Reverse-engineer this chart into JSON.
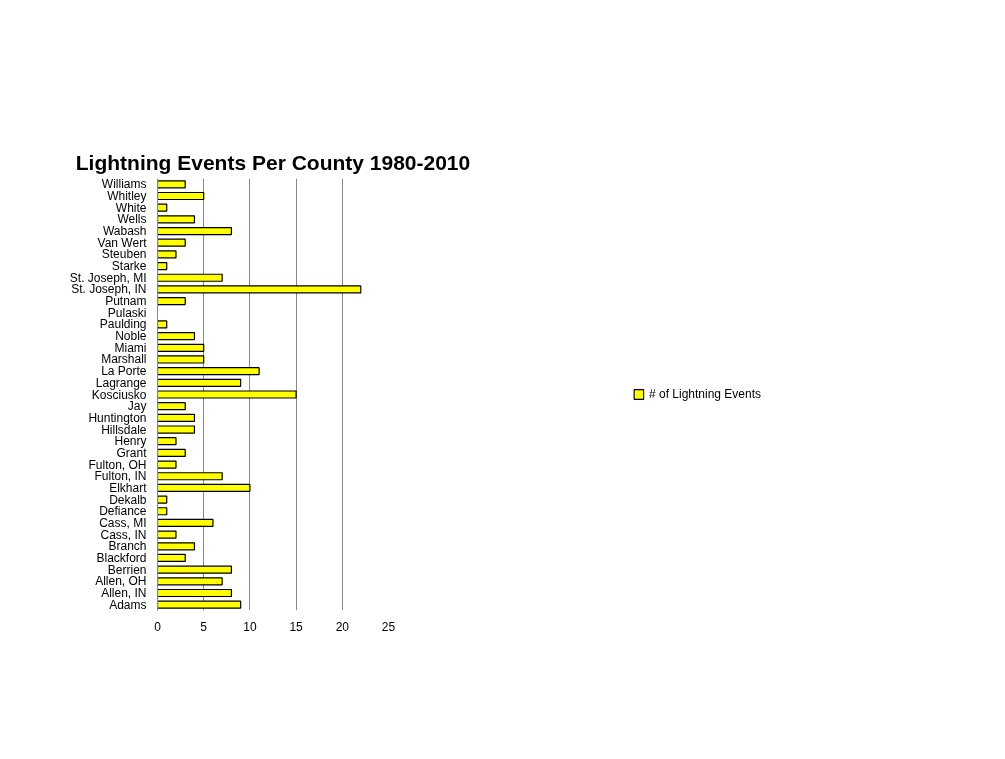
{
  "chart_data": {
    "type": "bar",
    "orientation": "horizontal",
    "title": "Lightning Events Per County 1980-2010",
    "categories": [
      "Williams",
      "Whitley",
      "White",
      "Wells",
      "Wabash",
      "Van Wert",
      "Steuben",
      "Starke",
      "St. Joseph, MI",
      "St. Joseph, IN",
      "Putnam",
      "Pulaski",
      "Paulding",
      "Noble",
      "Miami",
      "Marshall",
      "La Porte",
      "Lagrange",
      "Kosciusko",
      "Jay",
      "Huntington",
      "Hillsdale",
      "Henry",
      "Grant",
      "Fulton, OH",
      "Fulton, IN",
      "Elkhart",
      "Dekalb",
      "Defiance",
      "Cass, MI",
      "Cass, IN",
      "Branch",
      "Blackford",
      "Berrien",
      "Allen, OH",
      "Allen, IN",
      "Adams"
    ],
    "series": [
      {
        "name": "# of Lightning Events",
        "color": "#ffff00",
        "values": [
          3,
          5,
          1,
          4,
          8,
          3,
          2,
          1,
          7,
          22,
          3,
          0,
          1,
          4,
          5,
          5,
          11,
          9,
          15,
          3,
          4,
          4,
          2,
          3,
          2,
          7,
          10,
          1,
          1,
          6,
          2,
          4,
          3,
          8,
          7,
          8,
          9
        ]
      }
    ],
    "xlim": [
      0,
      25
    ],
    "xticks": [
      0,
      5,
      10,
      15,
      20,
      25
    ],
    "grid": "x",
    "legend": "right"
  }
}
